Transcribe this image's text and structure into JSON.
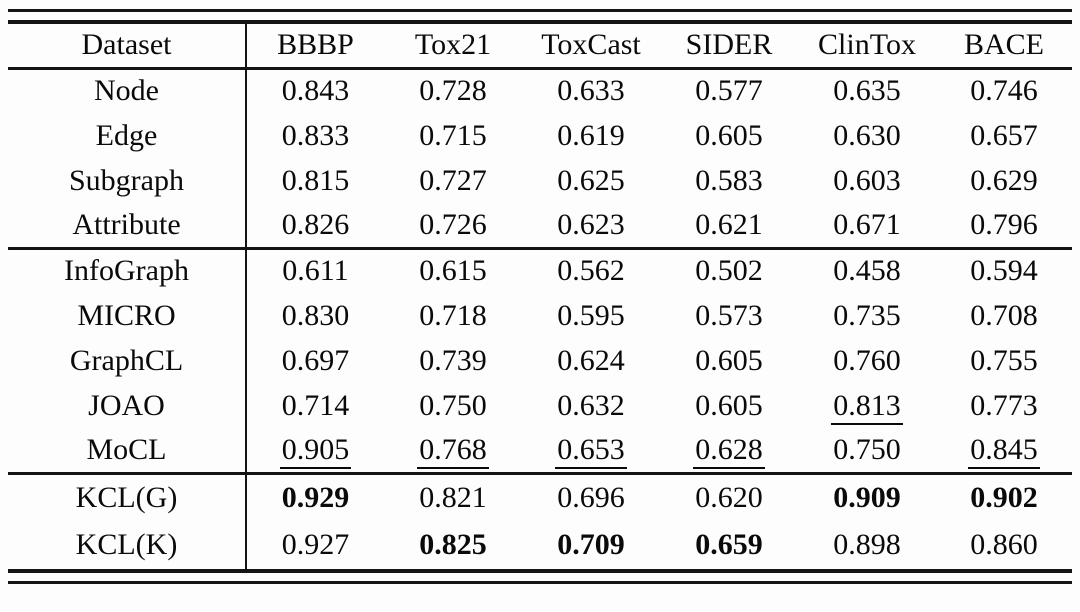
{
  "table": {
    "header": [
      "Dataset",
      "BBBP",
      "Tox21",
      "ToxCast",
      "SIDER",
      "ClinTox",
      "BACE"
    ],
    "sections": [
      {
        "rows": [
          {
            "method": "Node",
            "cells": [
              "0.843",
              "0.728",
              "0.633",
              "0.577",
              "0.635",
              "0.746"
            ],
            "bold": [],
            "underline": []
          },
          {
            "method": "Edge",
            "cells": [
              "0.833",
              "0.715",
              "0.619",
              "0.605",
              "0.630",
              "0.657"
            ],
            "bold": [],
            "underline": []
          },
          {
            "method": "Subgraph",
            "cells": [
              "0.815",
              "0.727",
              "0.625",
              "0.583",
              "0.603",
              "0.629"
            ],
            "bold": [],
            "underline": []
          },
          {
            "method": "Attribute",
            "cells": [
              "0.826",
              "0.726",
              "0.623",
              "0.621",
              "0.671",
              "0.796"
            ],
            "bold": [],
            "underline": []
          }
        ]
      },
      {
        "rows": [
          {
            "method": "InfoGraph",
            "cells": [
              "0.611",
              "0.615",
              "0.562",
              "0.502",
              "0.458",
              "0.594"
            ],
            "bold": [],
            "underline": []
          },
          {
            "method": "MICRO",
            "cells": [
              "0.830",
              "0.718",
              "0.595",
              "0.573",
              "0.735",
              "0.708"
            ],
            "bold": [],
            "underline": []
          },
          {
            "method": "GraphCL",
            "cells": [
              "0.697",
              "0.739",
              "0.624",
              "0.605",
              "0.760",
              "0.755"
            ],
            "bold": [],
            "underline": []
          },
          {
            "method": "JOAO",
            "cells": [
              "0.714",
              "0.750",
              "0.632",
              "0.605",
              "0.813",
              "0.773"
            ],
            "bold": [],
            "underline": [
              4
            ]
          },
          {
            "method": "MoCL",
            "cells": [
              "0.905",
              "0.768",
              "0.653",
              "0.628",
              "0.750",
              "0.845"
            ],
            "bold": [],
            "underline": [
              0,
              1,
              2,
              3,
              5
            ]
          }
        ]
      },
      {
        "rows": [
          {
            "method": "KCL(G)",
            "cells": [
              "0.929",
              "0.821",
              "0.696",
              "0.620",
              "0.909",
              "0.902"
            ],
            "bold": [
              0,
              4,
              5
            ],
            "underline": []
          },
          {
            "method": "KCL(K)",
            "cells": [
              "0.927",
              "0.825",
              "0.709",
              "0.659",
              "0.898",
              "0.860"
            ],
            "bold": [
              1,
              2,
              3
            ],
            "underline": []
          }
        ]
      }
    ],
    "colors": {
      "text": "#0a0a0a",
      "rule": "#141414",
      "background": "#fdfdfd"
    }
  }
}
